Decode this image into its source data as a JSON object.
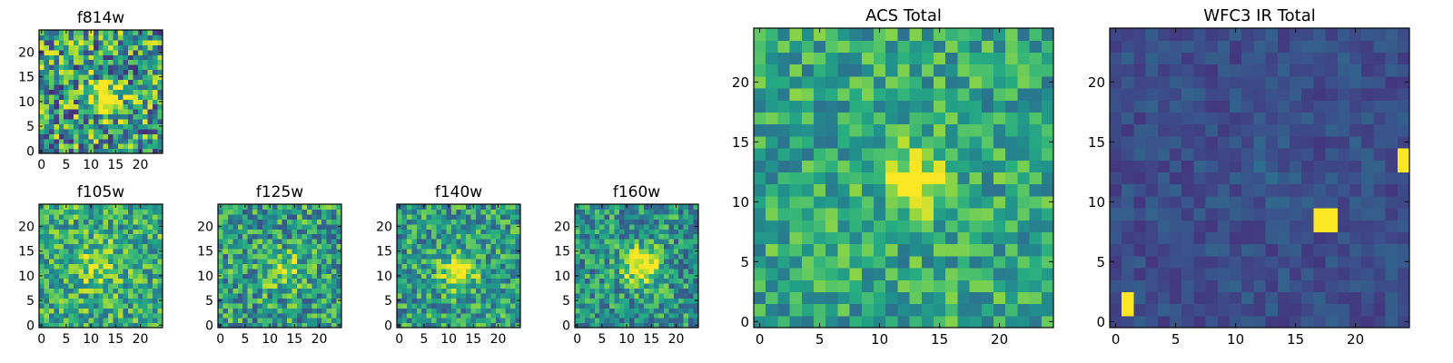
{
  "chart_data": [
    {
      "type": "heatmap",
      "title": "f814w",
      "x_ticks": [
        0,
        5,
        10,
        15,
        20
      ],
      "y_ticks": [
        0,
        5,
        10,
        15,
        20
      ],
      "xlim": [
        -0.5,
        24.5
      ],
      "ylim": [
        -0.5,
        24.5
      ],
      "grid_size": [
        25,
        25
      ],
      "colormap": "viridis",
      "source_peak": [
        13,
        11
      ],
      "source_width": 2.2,
      "source_strength": 0.65,
      "noise_level": 0.85,
      "baseline": 0.55,
      "seed": 11
    },
    {
      "type": "heatmap",
      "title": "f105w",
      "x_ticks": [
        0,
        5,
        10,
        15,
        20
      ],
      "y_ticks": [
        0,
        5,
        10,
        15,
        20
      ],
      "xlim": [
        -0.5,
        24.5
      ],
      "ylim": [
        -0.5,
        24.5
      ],
      "grid_size": [
        25,
        25
      ],
      "colormap": "viridis",
      "source_peak": [
        11,
        12
      ],
      "source_width": 3.0,
      "source_strength": 0.25,
      "noise_level": 0.55,
      "baseline": 0.62,
      "seed": 23
    },
    {
      "type": "heatmap",
      "title": "f125w",
      "x_ticks": [
        0,
        5,
        10,
        15,
        20
      ],
      "y_ticks": [
        0,
        5,
        10,
        15,
        20
      ],
      "xlim": [
        -0.5,
        24.5
      ],
      "ylim": [
        -0.5,
        24.5
      ],
      "grid_size": [
        25,
        25
      ],
      "colormap": "viridis",
      "source_peak": [
        13,
        11
      ],
      "source_width": 2.6,
      "source_strength": 0.3,
      "noise_level": 0.6,
      "baseline": 0.55,
      "seed": 37
    },
    {
      "type": "heatmap",
      "title": "f140w",
      "x_ticks": [
        0,
        5,
        10,
        15,
        20
      ],
      "y_ticks": [
        0,
        5,
        10,
        15,
        20
      ],
      "xlim": [
        -0.5,
        24.5
      ],
      "ylim": [
        -0.5,
        24.5
      ],
      "grid_size": [
        25,
        25
      ],
      "colormap": "viridis",
      "source_peak": [
        12,
        11
      ],
      "source_width": 2.4,
      "source_strength": 0.55,
      "noise_level": 0.55,
      "baseline": 0.55,
      "seed": 41
    },
    {
      "type": "heatmap",
      "title": "f160w",
      "x_ticks": [
        0,
        5,
        10,
        15,
        20
      ],
      "y_ticks": [
        0,
        5,
        10,
        15,
        20
      ],
      "xlim": [
        -0.5,
        24.5
      ],
      "ylim": [
        -0.5,
        24.5
      ],
      "grid_size": [
        25,
        25
      ],
      "colormap": "viridis",
      "source_peak": [
        13,
        12
      ],
      "source_width": 2.6,
      "source_strength": 0.6,
      "noise_level": 0.55,
      "baseline": 0.52,
      "seed": 53
    },
    {
      "type": "heatmap",
      "title": "ACS Total",
      "x_ticks": [
        0,
        5,
        10,
        15,
        20
      ],
      "y_ticks": [
        0,
        5,
        10,
        15,
        20
      ],
      "xlim": [
        -0.5,
        24.5
      ],
      "ylim": [
        -0.5,
        24.5
      ],
      "grid_size": [
        25,
        25
      ],
      "colormap": "viridis",
      "source_peak": [
        13,
        12
      ],
      "source_width": 2.0,
      "source_strength": 0.4,
      "noise_level": 0.45,
      "baseline": 0.6,
      "seed": 67
    },
    {
      "type": "heatmap",
      "title": "WFC3 IR Total",
      "x_ticks": [
        0,
        5,
        10,
        15,
        20
      ],
      "y_ticks": [
        0,
        5,
        10,
        15,
        20
      ],
      "xlim": [
        -0.5,
        24.5
      ],
      "ylim": [
        -0.5,
        24.5
      ],
      "grid_size": [
        25,
        25
      ],
      "colormap": "viridis",
      "source_peak": [
        13,
        12
      ],
      "source_width": 2.0,
      "source_strength": 0.05,
      "noise_level": 0.16,
      "baseline": 0.24,
      "seed": 79,
      "hot_pixels": [
        [
          1,
          1
        ],
        [
          1,
          2
        ],
        [
          17,
          8
        ],
        [
          18,
          8
        ],
        [
          17,
          9
        ],
        [
          18,
          9
        ],
        [
          24,
          13
        ],
        [
          24,
          14
        ]
      ]
    }
  ]
}
